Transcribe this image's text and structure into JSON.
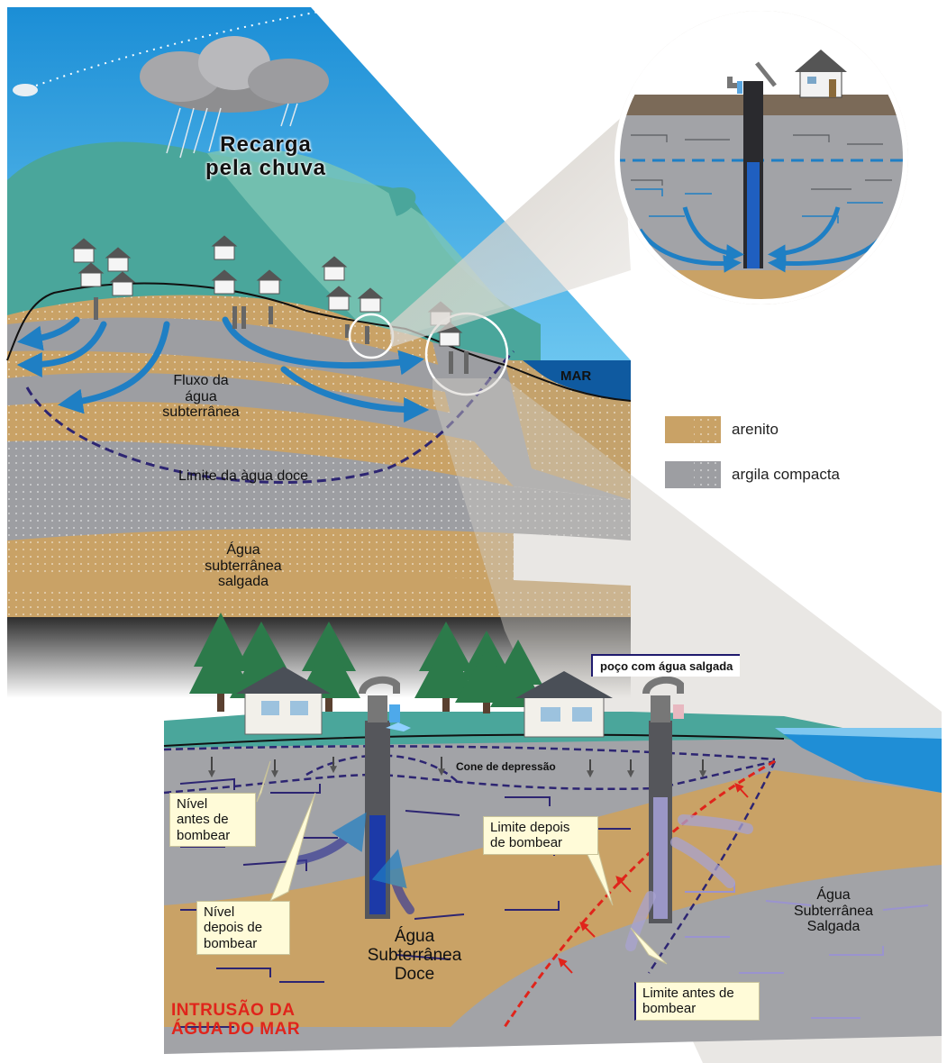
{
  "top_diagram": {
    "recharge_label": "Recarga\npela chuva",
    "flow_label": "Fluxo da\nágua\nsubterrânea",
    "freshwater_limit_label": "Limite da àgua doce",
    "saltwater_label": "Água\nsubterrânea\nsalgada",
    "sea_label": "MAR"
  },
  "legend": {
    "items": [
      {
        "label": "arenito",
        "color": "#c9a266"
      },
      {
        "label": "argila compacta",
        "color": "#9d9ea2"
      }
    ]
  },
  "bottom_diagram": {
    "salt_well_label": "poço com água salgada",
    "cone_label": "Cone de depressão",
    "level_before_label": "Nível\nantes de\nbombear",
    "level_after_label": "Nível\ndepois de\nbombear",
    "limit_after_label": "Limite depois\nde bombear",
    "limit_before_label": "Limite antes de\nbombear",
    "fresh_groundwater_label": "Água\nSubterrânea\nDoce",
    "salt_groundwater_label": "Água\nSubterrânea\nSalgada",
    "intrusion_label": "INTRUSÃO DA\nÁGUA DO MAR"
  },
  "colors": {
    "sky": "#2f9fe0",
    "sandstone": "#c9a266",
    "clay": "#9d9ea2",
    "water_arrow": "#1f7fc4",
    "intrusion_red": "#e0241b",
    "navy": "#1f1a6e"
  }
}
